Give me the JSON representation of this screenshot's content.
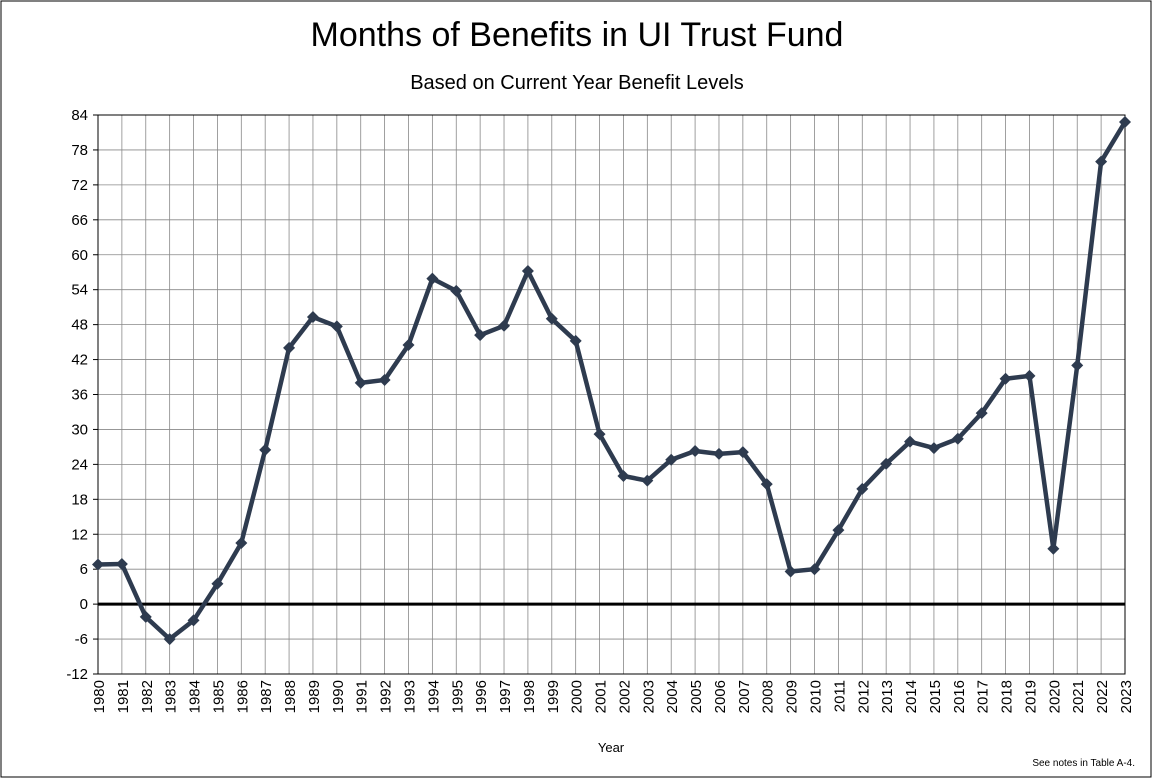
{
  "chart_data": {
    "type": "line",
    "title": "Months of Benefits in UI Trust Fund",
    "subtitle": "Based on Current Year Benefit Levels",
    "x_label": "Year",
    "note": "See notes  in Table A-4.",
    "categories": [
      "1980",
      "1981",
      "1982",
      "1983",
      "1984",
      "1985",
      "1986",
      "1987",
      "1988",
      "1989",
      "1990",
      "1991",
      "1992",
      "1993",
      "1994",
      "1995",
      "1996",
      "1997",
      "1998",
      "1999",
      "2000",
      "2001",
      "2002",
      "2003",
      "2004",
      "2005",
      "2006",
      "2007",
      "2008",
      "2009",
      "2010",
      "2011",
      "2012",
      "2013",
      "2014",
      "2015",
      "2016",
      "2017",
      "2018",
      "2019",
      "2020",
      "2021",
      "2022",
      "2023"
    ],
    "series": [
      {
        "color": "#2e3b4f",
        "values": [
          6.8,
          6.9,
          -2.2,
          -6,
          -2.8,
          3.5,
          10.5,
          26.5,
          44,
          49.3,
          47.7,
          38,
          38.5,
          44.5,
          55.9,
          53.8,
          46.2,
          47.8,
          57.2,
          49,
          45.2,
          29.2,
          22,
          21.2,
          24.8,
          26.3,
          25.8,
          26.1,
          20.6,
          5.6,
          6,
          12.7,
          19.8,
          24.1,
          27.9,
          26.8,
          28.4,
          32.8,
          38.7,
          39.2,
          9.5,
          41,
          76,
          82.8
        ]
      }
    ],
    "ylim": [
      -12,
      84
    ],
    "yticks": [
      -12,
      -6,
      0,
      6,
      12,
      18,
      24,
      30,
      36,
      42,
      48,
      54,
      60,
      66,
      72,
      78,
      84
    ],
    "grid": true
  }
}
